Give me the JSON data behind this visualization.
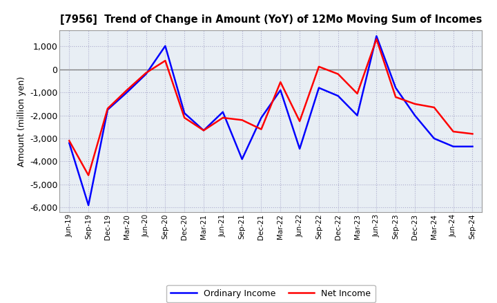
{
  "title": "[7956]  Trend of Change in Amount (YoY) of 12Mo Moving Sum of Incomes",
  "ylabel": "Amount (million yen)",
  "legend_labels": [
    "Ordinary Income",
    "Net Income"
  ],
  "line_colors": [
    "#0000FF",
    "#FF0000"
  ],
  "line_width": 1.8,
  "background_color": "#FFFFFF",
  "plot_bg_color": "#E8EEF4",
  "grid_color": "#AAAACC",
  "ylim": [
    -6200,
    1700
  ],
  "yticks": [
    -6000,
    -5000,
    -4000,
    -3000,
    -2000,
    -1000,
    0,
    1000
  ],
  "labels": [
    "Jun-19",
    "Sep-19",
    "Dec-19",
    "Mar-20",
    "Jun-20",
    "Sep-20",
    "Dec-20",
    "Mar-21",
    "Jun-21",
    "Sep-21",
    "Dec-21",
    "Mar-22",
    "Jun-22",
    "Sep-22",
    "Dec-22",
    "Mar-23",
    "Jun-23",
    "Sep-23",
    "Dec-23",
    "Mar-24",
    "Jun-24",
    "Sep-24"
  ],
  "ordinary_income": [
    -3200,
    -5900,
    -1750,
    -1000,
    -200,
    1020,
    -1900,
    -2650,
    -1850,
    -3900,
    -2100,
    -900,
    -3450,
    -800,
    -1150,
    -2000,
    1450,
    -800,
    -2000,
    -3000,
    -3350,
    -3350
  ],
  "net_income": [
    -3100,
    -4600,
    -1700,
    -900,
    -150,
    380,
    -2100,
    -2650,
    -2100,
    -2200,
    -2600,
    -550,
    -2250,
    120,
    -200,
    -1050,
    1320,
    -1200,
    -1500,
    -1650,
    -2700,
    -2800
  ]
}
